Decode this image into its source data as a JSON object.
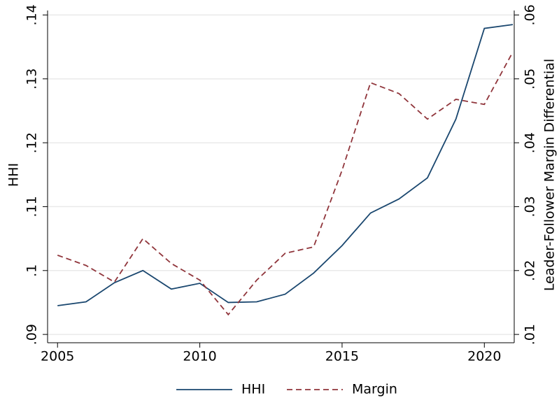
{
  "chart_data": {
    "type": "line",
    "y_label": "HHI",
    "y2_label": "Leader-Follower Margin Differential",
    "x": [
      2005,
      2006,
      2007,
      2008,
      2009,
      2010,
      2011,
      2012,
      2013,
      2014,
      2015,
      2016,
      2017,
      2018,
      2019,
      2020,
      2021
    ],
    "series": [
      {
        "name": "HHI",
        "color": "#1a476f",
        "dash": false,
        "values": [
          0.0945,
          0.0951,
          0.0981,
          0.1,
          0.0971,
          0.098,
          0.095,
          0.0951,
          0.0963,
          0.0996,
          0.1039,
          0.109,
          0.1112,
          0.1145,
          0.1237,
          0.1379,
          0.1385
        ]
      },
      {
        "name": "Margin",
        "color": "#90353b",
        "dash": true,
        "axis": "y2",
        "values": [
          0.0224,
          0.0208,
          0.0182,
          0.025,
          0.0211,
          0.0185,
          0.0131,
          0.0185,
          0.0227,
          0.0237,
          0.0357,
          0.0494,
          0.0477,
          0.0437,
          0.0468,
          0.046,
          0.0542
        ]
      }
    ],
    "xlim": [
      2004.65,
      2021.05
    ],
    "xticks": [
      2005,
      2010,
      2015,
      2020
    ],
    "ylim": [
      0.0887,
      0.1407
    ],
    "yticks": [
      {
        "value": 0.09,
        "label": ".09"
      },
      {
        "value": 0.1,
        "label": ".1"
      },
      {
        "value": 0.11,
        "label": ".11"
      },
      {
        "value": 0.12,
        "label": ".12"
      },
      {
        "value": 0.13,
        "label": ".13"
      },
      {
        "value": 0.14,
        "label": ".14"
      }
    ],
    "y2lim": [
      0.0087,
      0.0607
    ],
    "y2ticks": [
      {
        "value": 0.01,
        "label": ".01"
      },
      {
        "value": 0.02,
        "label": ".02"
      },
      {
        "value": 0.03,
        "label": ".03"
      },
      {
        "value": 0.04,
        "label": ".04"
      },
      {
        "value": 0.05,
        "label": ".05"
      },
      {
        "value": 0.06,
        "label": ".06"
      }
    ],
    "grid": true,
    "legend": "bottom"
  }
}
